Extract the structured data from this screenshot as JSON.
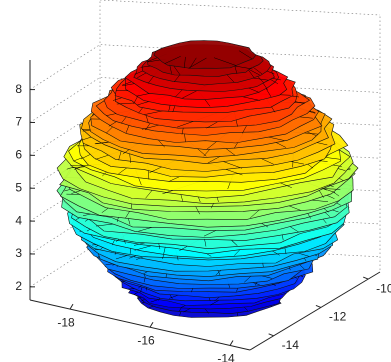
{
  "chart_data": {
    "type": "surface3d",
    "colormap": "jet",
    "grid": true,
    "xlim": [
      -19,
      -13.5
    ],
    "xticks": [
      -18,
      -16,
      -14
    ],
    "ylim": [
      -15,
      -9.5
    ],
    "yticks": [
      -14,
      -12,
      -10
    ],
    "zlim": [
      1.6,
      8.9
    ],
    "zticks": [
      2,
      3,
      4,
      5,
      6,
      7,
      8
    ]
  }
}
